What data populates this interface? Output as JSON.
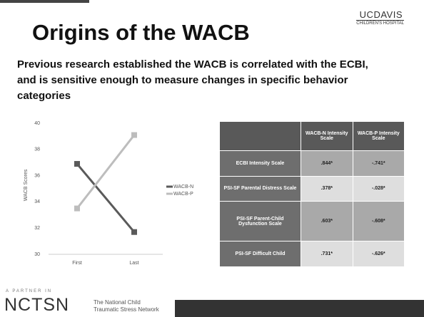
{
  "header": {
    "title": "Origins of the WACB",
    "logo_top": "UCDAVIS",
    "logo_bottom": "CHILDREN'S HOSPITAL",
    "subtitle": "Previous research established the WACB is correlated with the ECBI, and is sensitive enough to measure changes in specific behavior categories"
  },
  "chart_data": {
    "type": "line",
    "ylabel": "WACB Scores",
    "categories": [
      "First",
      "Last"
    ],
    "series": [
      {
        "name": "WACB-N",
        "color": "#5a5a5a",
        "values": [
          36.9,
          31.7
        ]
      },
      {
        "name": "WACB-P",
        "color": "#bdbdbd",
        "values": [
          33.5,
          39.1
        ]
      }
    ],
    "ylim": [
      30,
      40
    ],
    "yticks": [
      30,
      32,
      34,
      36,
      38,
      40
    ],
    "grid": false,
    "legend": "right"
  },
  "table": {
    "headers": [
      "WACB-N Intensity Scale",
      "WACB-P Intensity Scale"
    ],
    "rows": [
      [
        "ECBI Intensity Scale",
        ".844*",
        "-.741*"
      ],
      [
        "PSI-SF Parental Distress Scale",
        ".378*",
        "-.028*"
      ],
      [
        "PSI-SF Parent-Child Dysfunction Scale",
        ".603*",
        "-.608*"
      ],
      [
        "PSI-SF Difficult Child",
        ".731*",
        "-.626*"
      ]
    ]
  },
  "footer": {
    "partner": "A PARTNER IN",
    "org": "NCTSN",
    "org_name_1": "The National Child",
    "org_name_2": "Traumatic Stress Network"
  }
}
